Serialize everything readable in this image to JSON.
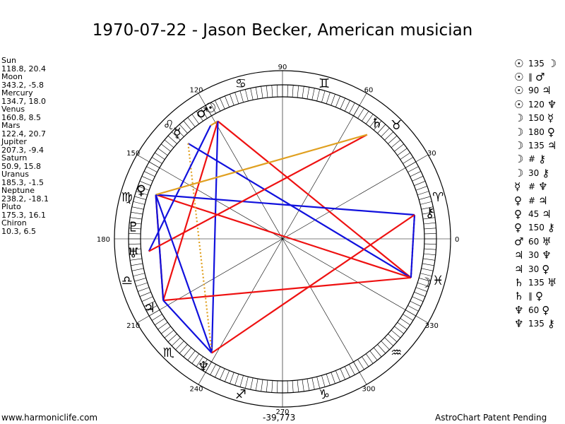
{
  "title": "1970-07-22 - Jason Becker, American musician",
  "planets": [
    {
      "name": "Sun",
      "values": "118.8, 20.4",
      "lon": 118.8,
      "glyph": "☉"
    },
    {
      "name": "Moon",
      "values": "343.2, -5.8",
      "lon": 343.2,
      "glyph": "☽"
    },
    {
      "name": "Mercury",
      "values": "134.7, 18.0",
      "lon": 134.7,
      "glyph": "☿"
    },
    {
      "name": "Venus",
      "values": "160.8, 8.5",
      "lon": 160.8,
      "glyph": "♀"
    },
    {
      "name": "Mars",
      "values": "122.4, 20.7",
      "lon": 122.4,
      "glyph": "♂"
    },
    {
      "name": "Jupiter",
      "values": "207.3, -9.4",
      "lon": 207.3,
      "glyph": "♃"
    },
    {
      "name": "Saturn",
      "values": "50.9, 15.8",
      "lon": 50.9,
      "glyph": "♄"
    },
    {
      "name": "Uranus",
      "values": "185.3, -1.5",
      "lon": 185.3,
      "glyph": "♅"
    },
    {
      "name": "Neptune",
      "values": "238.2, -18.1",
      "lon": 238.2,
      "glyph": "♆"
    },
    {
      "name": "Pluto",
      "values": "175.3, 16.1",
      "lon": 175.3,
      "glyph": "♇"
    },
    {
      "name": "Chiron",
      "values": "10.3, 6.5",
      "lon": 10.3,
      "glyph": "⚷"
    }
  ],
  "aspects": [
    {
      "p1": "☉",
      "aspect": "135",
      "p2": "☽"
    },
    {
      "p1": "☉",
      "aspect": "∥",
      "p2": "♂"
    },
    {
      "p1": "☉",
      "aspect": "90",
      "p2": "♃"
    },
    {
      "p1": "☉",
      "aspect": "120",
      "p2": "♆"
    },
    {
      "p1": "☽",
      "aspect": "150",
      "p2": "☿"
    },
    {
      "p1": "☽",
      "aspect": "180",
      "p2": "♀"
    },
    {
      "p1": "☽",
      "aspect": "135",
      "p2": "♃"
    },
    {
      "p1": "☽",
      "aspect": "#",
      "p2": "⚷"
    },
    {
      "p1": "☽",
      "aspect": "30",
      "p2": "⚷"
    },
    {
      "p1": "☿",
      "aspect": "#",
      "p2": "♆"
    },
    {
      "p1": "♀",
      "aspect": "#",
      "p2": "♃"
    },
    {
      "p1": "♀",
      "aspect": "45",
      "p2": "♃"
    },
    {
      "p1": "♀",
      "aspect": "150",
      "p2": "⚷"
    },
    {
      "p1": "♂",
      "aspect": "60",
      "p2": "♅"
    },
    {
      "p1": "♃",
      "aspect": "30",
      "p2": "♆"
    },
    {
      "p1": "♃",
      "aspect": "30",
      "p2": "♀"
    },
    {
      "p1": "♄",
      "aspect": "135",
      "p2": "♅"
    },
    {
      "p1": "♄",
      "aspect": "∥",
      "p2": "♀"
    },
    {
      "p1": "♆",
      "aspect": "60",
      "p2": "♀"
    },
    {
      "p1": "♆",
      "aspect": "135",
      "p2": "⚷"
    }
  ],
  "degree_labels": [
    "0",
    "30",
    "60",
    "90",
    "120",
    "150",
    "180",
    "210",
    "240",
    "270",
    "300",
    "330"
  ],
  "zodiac_signs": [
    "♈",
    "♉",
    "♊",
    "♋",
    "♌",
    "♍",
    "♎",
    "♏",
    "♐",
    "♑",
    "♒",
    "♓"
  ],
  "colors": {
    "red": "#ee1111",
    "blue": "#1111dd",
    "gold": "#e0a020"
  },
  "footer": {
    "left": "www.harmoniclife.com",
    "center": "-39,773",
    "right": "AstroChart Patent Pending"
  }
}
